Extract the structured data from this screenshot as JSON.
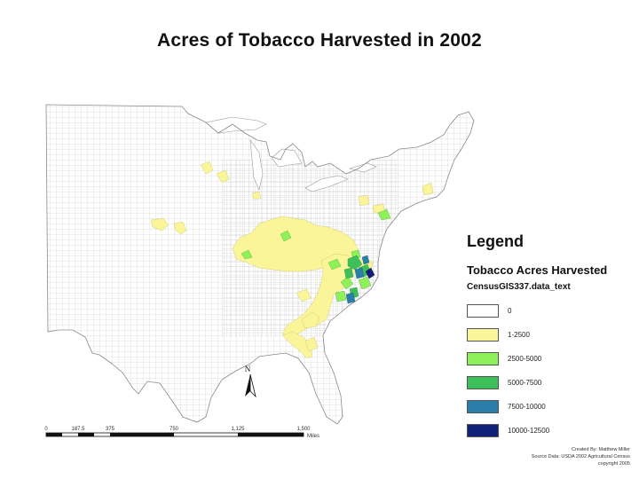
{
  "title": "Acres of Tobacco Harvested in 2002",
  "legend": {
    "title": "Legend",
    "subtitle": "Tobacco Acres Harvested",
    "field": "CensusGIS337.data_text",
    "items": [
      {
        "label": "0",
        "color": "#ffffff"
      },
      {
        "label": "1-2500",
        "color": "#fbf59a"
      },
      {
        "label": "2500-5000",
        "color": "#8ff15a"
      },
      {
        "label": "5000-7500",
        "color": "#3dbf5a"
      },
      {
        "label": "7500-10000",
        "color": "#2a7fa8"
      },
      {
        "label": "10000-12500",
        "color": "#13207a"
      }
    ]
  },
  "north_arrow": {
    "letter": "N"
  },
  "scale_bar": {
    "ticks": [
      "0",
      "187.5",
      "375",
      "750",
      "1,125",
      "1,500"
    ],
    "unit": "Miles"
  },
  "credits": {
    "line1": "Created By: Matthew Miller",
    "line2": "Source Data: USDA 2002 Agricultural Census",
    "line3": "copyright 2005"
  },
  "colors": {
    "county_lines": "#bfbfbf",
    "outline": "#888888"
  }
}
